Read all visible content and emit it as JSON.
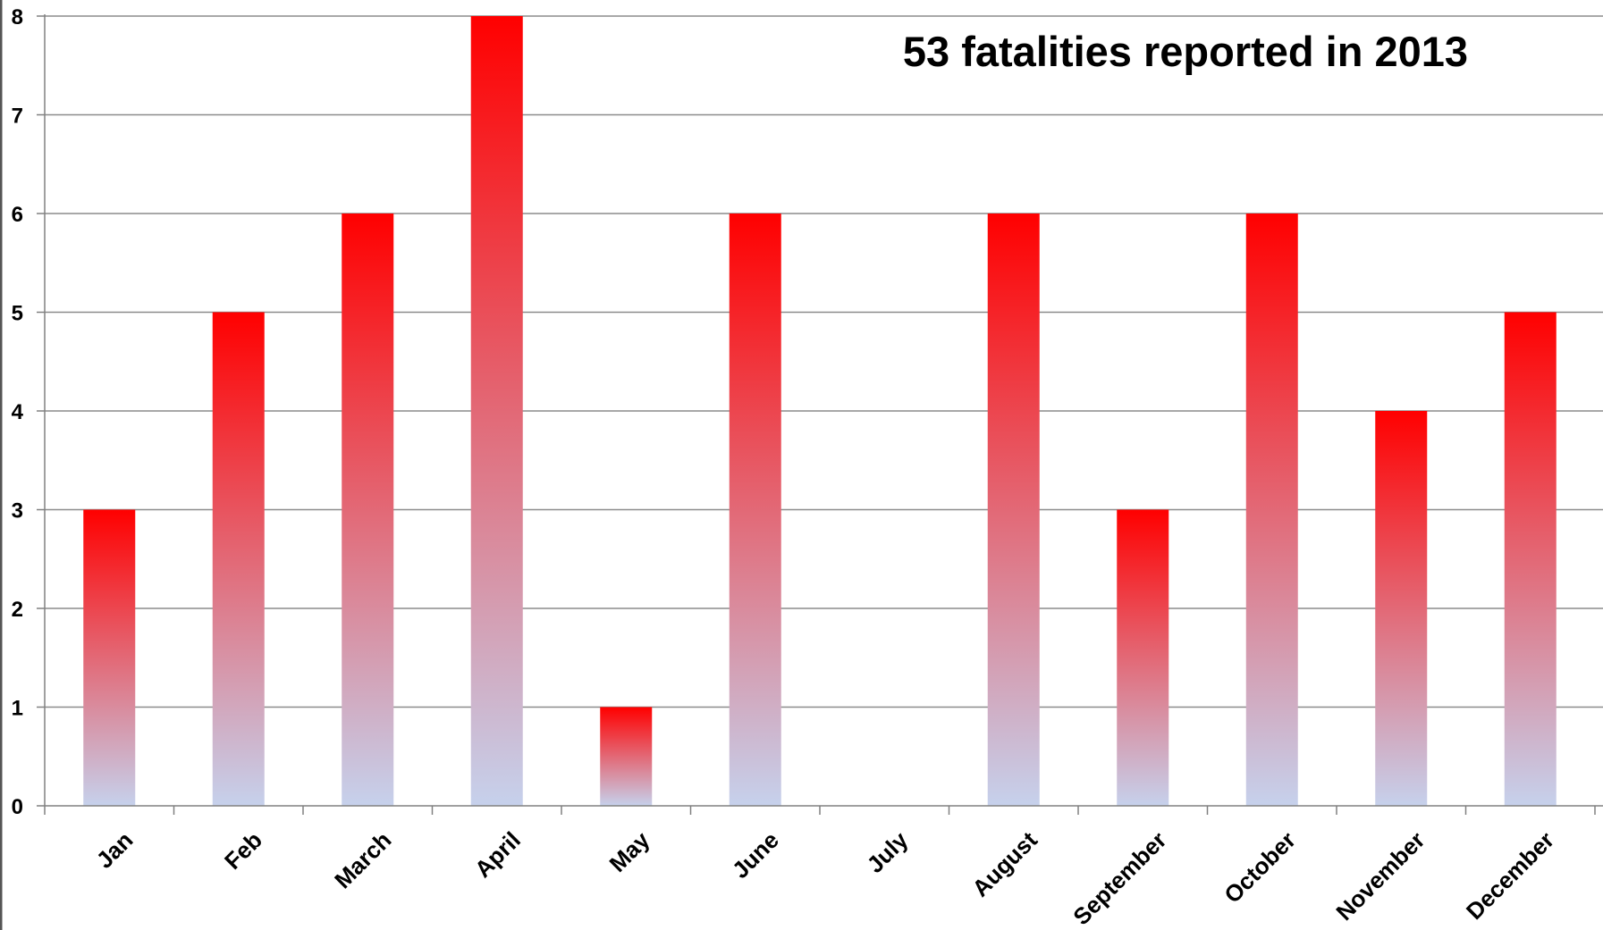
{
  "chart_data": {
    "type": "bar",
    "title": "53 fatalities reported in 2013",
    "xlabel": "",
    "ylabel": "",
    "categories": [
      "Jan",
      "Feb",
      "March",
      "April",
      "May",
      "June",
      "July",
      "August",
      "September",
      "October",
      "November",
      "December"
    ],
    "values": [
      3,
      5,
      6,
      8,
      1,
      6,
      0,
      6,
      3,
      6,
      4,
      5
    ],
    "ylim": [
      0,
      8
    ],
    "yticks": [
      "0",
      "1",
      "2",
      "3",
      "4",
      "5",
      "6",
      "7",
      "8"
    ],
    "grid": true,
    "legend": "none",
    "colors": {
      "bar_top": "#ff0000",
      "bar_bottom": "#c6d1ec",
      "gridline": "#8c8c8c",
      "axis": "#808080"
    }
  }
}
